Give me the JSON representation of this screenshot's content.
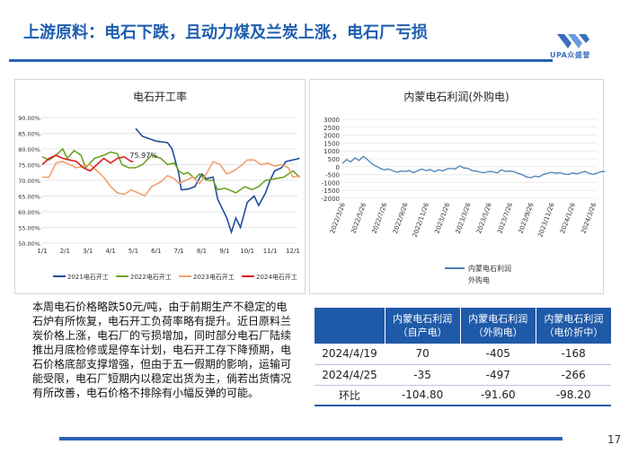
{
  "title": "上游原料：电石下跌，且动力煤及兰炭上涨，电石厂亏损",
  "logo_text": "UPA众盛誉",
  "page_number": "17",
  "colors": {
    "accent": "#1f5fb0",
    "header_bg": "#1f5aa8"
  },
  "left_chart": {
    "title": "电石开工率",
    "annotation": "75.97%",
    "chart_data": {
      "type": "line",
      "title": "电石开工率",
      "x_ticks": [
        "1/1",
        "2/1",
        "3/1",
        "4/1",
        "5/1",
        "6/1",
        "7/1",
        "8/1",
        "9/1",
        "10/1",
        "11/1",
        "12/1"
      ],
      "y_ticks": [
        "50.00%",
        "55.00%",
        "60.00%",
        "65.00%",
        "70.00%",
        "75.00%",
        "80.00%",
        "85.00%",
        "90.00%"
      ],
      "ylim": [
        50,
        90
      ],
      "series": [
        {
          "name": "2021电石开工",
          "color": "#1f4e9c",
          "points": [
            [
              4.1,
              86.5
            ],
            [
              4.4,
              84
            ],
            [
              4.8,
              83
            ],
            [
              5.0,
              82.5
            ],
            [
              5.5,
              82
            ],
            [
              5.7,
              80
            ],
            [
              6.0,
              72
            ],
            [
              6.1,
              67
            ],
            [
              6.4,
              67.2
            ],
            [
              6.7,
              68
            ],
            [
              7.0,
              72
            ],
            [
              7.2,
              70.5
            ],
            [
              7.5,
              71
            ],
            [
              7.7,
              64
            ],
            [
              8.1,
              58
            ],
            [
              8.3,
              53.5
            ],
            [
              8.5,
              58
            ],
            [
              8.7,
              55
            ],
            [
              9.0,
              63
            ],
            [
              9.3,
              65
            ],
            [
              9.5,
              62
            ],
            [
              9.8,
              66
            ],
            [
              10.0,
              70
            ],
            [
              10.2,
              73
            ],
            [
              10.5,
              74
            ],
            [
              10.7,
              76
            ],
            [
              11.0,
              76.5
            ],
            [
              11.3,
              77
            ]
          ]
        },
        {
          "name": "2022电石开工",
          "color": "#6aa322",
          "points": [
            [
              0.0,
              77.5
            ],
            [
              0.3,
              76.5
            ],
            [
              0.6,
              78
            ],
            [
              0.9,
              80
            ],
            [
              1.1,
              77
            ],
            [
              1.4,
              79.5
            ],
            [
              1.7,
              78
            ],
            [
              1.9,
              74
            ],
            [
              2.3,
              77
            ],
            [
              2.7,
              78
            ],
            [
              3.0,
              79
            ],
            [
              3.3,
              78.5
            ],
            [
              3.5,
              75
            ],
            [
              3.8,
              74
            ],
            [
              4.1,
              74
            ],
            [
              4.4,
              75
            ],
            [
              4.8,
              78
            ],
            [
              5.2,
              77
            ],
            [
              5.5,
              75
            ],
            [
              5.8,
              75.5
            ],
            [
              6.0,
              73
            ],
            [
              6.2,
              72
            ],
            [
              6.4,
              72.5
            ],
            [
              6.7,
              70.5
            ],
            [
              6.9,
              72
            ],
            [
              7.2,
              70
            ],
            [
              7.5,
              70
            ],
            [
              7.7,
              67
            ],
            [
              8.0,
              67.5
            ],
            [
              8.2,
              67
            ],
            [
              8.5,
              66
            ],
            [
              8.9,
              68
            ],
            [
              9.2,
              67
            ],
            [
              9.5,
              68
            ],
            [
              9.8,
              70
            ],
            [
              10.2,
              70.5
            ],
            [
              10.6,
              71
            ],
            [
              11.0,
              73
            ],
            [
              11.3,
              71
            ]
          ]
        },
        {
          "name": "2023电石开工",
          "color": "#f2a06e",
          "points": [
            [
              0.0,
              71
            ],
            [
              0.3,
              71
            ],
            [
              0.6,
              75.5
            ],
            [
              0.9,
              76
            ],
            [
              1.2,
              75
            ],
            [
              1.5,
              74
            ],
            [
              1.8,
              74.5
            ],
            [
              2.1,
              75
            ],
            [
              2.4,
              73
            ],
            [
              2.7,
              71
            ],
            [
              3.0,
              68
            ],
            [
              3.3,
              66
            ],
            [
              3.6,
              65.5
            ],
            [
              3.9,
              67
            ],
            [
              4.2,
              66
            ],
            [
              4.5,
              65
            ],
            [
              4.8,
              68
            ],
            [
              5.2,
              69.5
            ],
            [
              5.5,
              71.5
            ],
            [
              5.8,
              70.5
            ],
            [
              6.0,
              69
            ],
            [
              6.3,
              70
            ],
            [
              6.6,
              71
            ],
            [
              6.9,
              69
            ],
            [
              7.2,
              72
            ],
            [
              7.5,
              76
            ],
            [
              7.8,
              75
            ],
            [
              8.1,
              72
            ],
            [
              8.4,
              73
            ],
            [
              8.7,
              74.5
            ],
            [
              9.0,
              76.5
            ],
            [
              9.3,
              76.5
            ],
            [
              9.6,
              75
            ],
            [
              9.9,
              75.5
            ],
            [
              10.2,
              74.5
            ],
            [
              10.5,
              75
            ],
            [
              10.8,
              74
            ],
            [
              11.0,
              71
            ],
            [
              11.3,
              71.5
            ]
          ]
        },
        {
          "name": "2024电石开工",
          "color": "#d91f1f",
          "points": [
            [
              0.0,
              75
            ],
            [
              0.3,
              77
            ],
            [
              0.6,
              78
            ],
            [
              0.9,
              77
            ],
            [
              1.2,
              76.5
            ],
            [
              1.5,
              76
            ],
            [
              1.8,
              74
            ],
            [
              2.1,
              73
            ],
            [
              2.4,
              75
            ],
            [
              2.7,
              77
            ],
            [
              3.0,
              75.5
            ],
            [
              3.3,
              77
            ],
            [
              3.6,
              77.5
            ],
            [
              3.9,
              76
            ],
            [
              4.0,
              76
            ]
          ]
        }
      ]
    }
  },
  "right_chart": {
    "title": "内蒙电石利润(外购电)",
    "legend_label": "内蒙电石利润 外购电",
    "chart_data": {
      "type": "line",
      "title": "内蒙电石利润(外购电)",
      "x_ticks": [
        "2022/3/26",
        "2022/5/26",
        "2022/7/26",
        "2022/9/26",
        "2022/11/26",
        "2023/1/26",
        "2023/3/26",
        "2023/5/26",
        "2023/7/26",
        "2023/9/26",
        "2023/11/26",
        "2024/1/26",
        "2024/3/26"
      ],
      "y_ticks": [
        "3000",
        "2500",
        "2000",
        "1500",
        "1000",
        "500",
        "0",
        "-500",
        "-1000",
        "-1500",
        "-2000"
      ],
      "ylim": [
        -2000,
        3000
      ],
      "series": [
        {
          "name": "内蒙电石利润 外购电",
          "color": "#4a7fb5",
          "points": [
            [
              0.0,
              200
            ],
            [
              0.2,
              450
            ],
            [
              0.4,
              300
            ],
            [
              0.6,
              550
            ],
            [
              0.8,
              400
            ],
            [
              1.0,
              650
            ],
            [
              1.2,
              450
            ],
            [
              1.4,
              200
            ],
            [
              1.6,
              50
            ],
            [
              1.8,
              -100
            ],
            [
              2.0,
              -200
            ],
            [
              2.2,
              -150
            ],
            [
              2.4,
              -250
            ],
            [
              2.6,
              -350
            ],
            [
              2.8,
              -280
            ],
            [
              3.0,
              -300
            ],
            [
              3.2,
              -250
            ],
            [
              3.4,
              -380
            ],
            [
              3.6,
              -260
            ],
            [
              3.8,
              -150
            ],
            [
              4.0,
              -250
            ],
            [
              4.2,
              -180
            ],
            [
              4.4,
              -320
            ],
            [
              4.6,
              -200
            ],
            [
              4.8,
              -260
            ],
            [
              5.0,
              -150
            ],
            [
              5.2,
              -100
            ],
            [
              5.4,
              -150
            ],
            [
              5.6,
              50
            ],
            [
              5.8,
              -80
            ],
            [
              6.0,
              -100
            ],
            [
              6.2,
              -250
            ],
            [
              6.4,
              -280
            ],
            [
              6.6,
              -350
            ],
            [
              6.8,
              -380
            ],
            [
              7.0,
              -300
            ],
            [
              7.2,
              -320
            ],
            [
              7.4,
              -400
            ],
            [
              7.6,
              -200
            ],
            [
              7.8,
              -300
            ],
            [
              8.0,
              -280
            ],
            [
              8.2,
              -320
            ],
            [
              8.4,
              -420
            ],
            [
              8.6,
              -500
            ],
            [
              8.8,
              -650
            ],
            [
              9.0,
              -700
            ],
            [
              9.2,
              -600
            ],
            [
              9.4,
              -650
            ],
            [
              9.6,
              -500
            ],
            [
              9.8,
              -420
            ],
            [
              10.0,
              -350
            ],
            [
              10.2,
              -420
            ],
            [
              10.4,
              -380
            ],
            [
              10.6,
              -460
            ],
            [
              10.8,
              -500
            ],
            [
              11.0,
              -400
            ],
            [
              11.2,
              -450
            ],
            [
              11.4,
              -380
            ],
            [
              11.6,
              -300
            ],
            [
              11.8,
              -420
            ],
            [
              12.0,
              -480
            ],
            [
              12.2,
              -400
            ],
            [
              12.4,
              -300
            ],
            [
              12.6,
              -320
            ],
            [
              12.8,
              -497
            ]
          ]
        }
      ]
    }
  },
  "body_text": "本周电石价格略跌50元/吨，由于前期生产不稳定的电石炉有所恢复，电石开工负荷率略有提升。近日原料兰炭价格上涨，电石厂的亏损增加，同时部分电石厂陆续推出月底检修或是停车计划，电石开工存下降预期，电石价格底部支撑增强，但由于五一假期的影响，运输可能受限，电石厂短期内以稳定出货为主，倘若出货情况有所改善，电石价格不排除有小幅反弹的可能。",
  "table": {
    "headers": [
      {
        "line1": "内蒙电石利润",
        "line2": "（自产电）"
      },
      {
        "line1": "内蒙电石利润",
        "line2": "（外购电）"
      },
      {
        "line1": "内蒙电石利润",
        "line2": "（电价折中）"
      }
    ],
    "rows": [
      {
        "label": "2024/4/19",
        "values": [
          "70",
          "-405",
          "-168"
        ]
      },
      {
        "label": "2024/4/25",
        "values": [
          "-35",
          "-497",
          "-266"
        ]
      },
      {
        "label": "环比",
        "values": [
          "-104.80",
          "-91.60",
          "-98.20"
        ]
      }
    ]
  }
}
